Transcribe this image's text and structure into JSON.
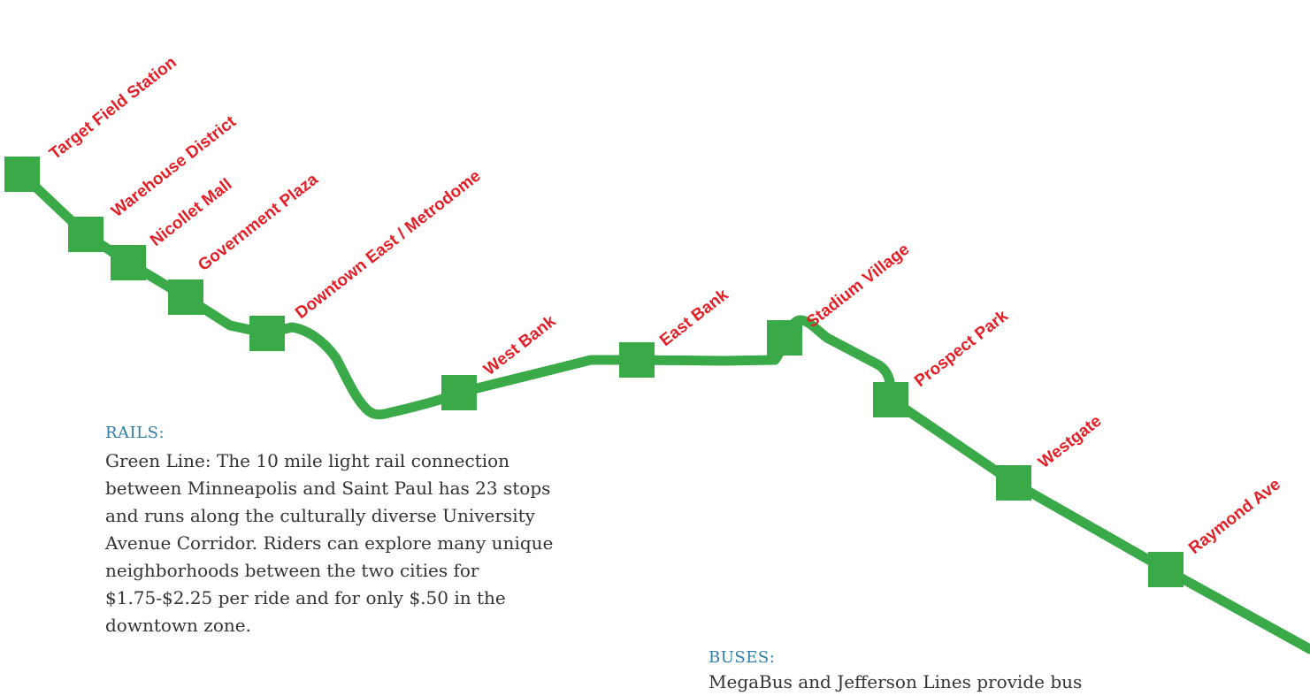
{
  "colors": {
    "line": "#3aaa48",
    "label": "#e21f26",
    "heading": "#2f7ea6",
    "body": "#333333"
  },
  "map": {
    "line_name": "Green Line",
    "stations": [
      {
        "name": "Target Field Station"
      },
      {
        "name": "Warehouse District"
      },
      {
        "name": "Nicollet Mall"
      },
      {
        "name": "Government Plaza"
      },
      {
        "name": "Downtown East / Metrodome"
      },
      {
        "name": "West Bank"
      },
      {
        "name": "East Bank"
      },
      {
        "name": "Stadium Village"
      },
      {
        "name": "Prospect Park"
      },
      {
        "name": "Westgate"
      },
      {
        "name": "Raymond Ave"
      }
    ]
  },
  "rails": {
    "heading": "RAILS:",
    "body": "Green Line: The 10 mile light rail connection between Minneapolis and Saint Paul has 23 stops and runs along the culturally diverse University Avenue Corridor.  Riders can explore many unique neighborhoods between the two cities for $1.75-$2.25 per ride and for only $.50 in the downtown zone."
  },
  "buses": {
    "heading": "BUSES:",
    "body": "MegaBus and Jefferson Lines provide bus"
  }
}
